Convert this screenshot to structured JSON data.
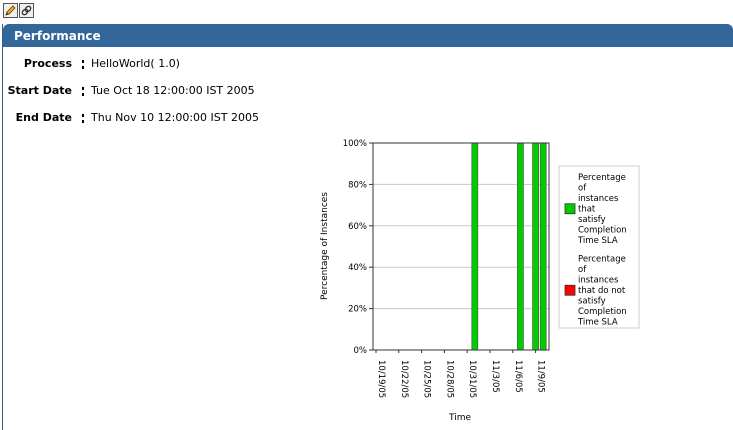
{
  "toolbar": {
    "edit_icon": "pencil-icon",
    "link_icon": "link-icon"
  },
  "portlet": {
    "title": "Performance"
  },
  "fields": [
    {
      "label": "Process",
      "value": "HelloWorld( 1.0)"
    },
    {
      "label": "Start Date",
      "value": "Tue Oct 18 12:00:00 IST 2005"
    },
    {
      "label": "End Date",
      "value": "Thu Nov 10 12:00:00 IST 2005"
    }
  ],
  "colors": {
    "header": "#336699",
    "satisfy": "#00cc00",
    "not_satisfy": "#ff0000"
  },
  "chart_data": {
    "type": "bar",
    "stacked": true,
    "xlabel": "Time",
    "ylabel": "Percentage of Instances",
    "ylim": [
      0,
      100
    ],
    "yticks": [
      "0%",
      "20%",
      "40%",
      "60%",
      "80%",
      "100%"
    ],
    "xtick_labels": [
      "10/19/05",
      "10/22/05",
      "10/25/05",
      "10/28/05",
      "10/31/05",
      "11/3/05",
      "11/6/05",
      "11/9/05"
    ],
    "categories": [
      "11/1/05",
      "11/7/05",
      "11/9/05",
      "11/10/05"
    ],
    "series": [
      {
        "name": "Percentage of instances that satisfy Completion Time SLA",
        "color": "#00cc00",
        "values": [
          100,
          100,
          100,
          100
        ]
      },
      {
        "name": "Percentage of instances that do not satisfy Completion Time SLA",
        "color": "#ff0000",
        "values": [
          0,
          0,
          0,
          0
        ]
      }
    ],
    "legend_position": "right",
    "grid": true
  }
}
